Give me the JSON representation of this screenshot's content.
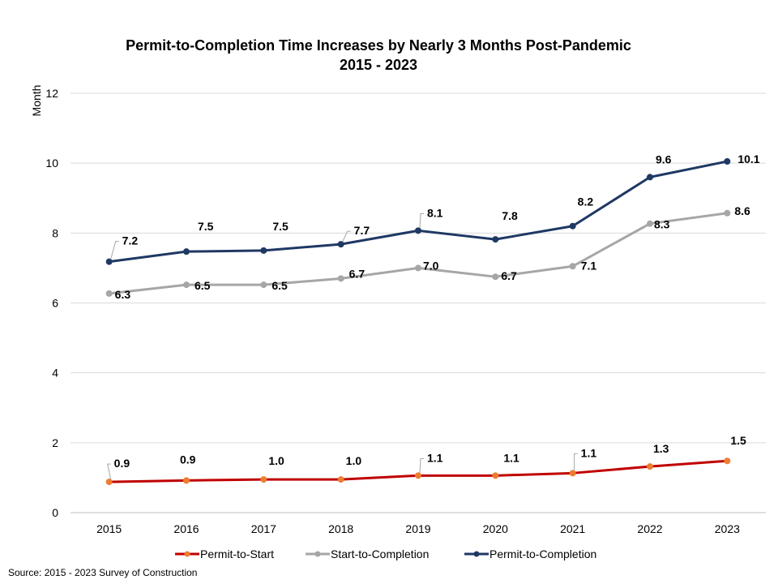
{
  "chart_data": {
    "type": "line",
    "title": "Permit-to-Completion  Time Increases by Nearly 3 Months Post-Pandemic",
    "subtitle": "2015 - 2023",
    "xlabel": "",
    "ylabel": "Month",
    "ylim": [
      0,
      12
    ],
    "yticks": [
      0,
      2,
      4,
      6,
      8,
      10,
      12
    ],
    "grid": true,
    "legend_position": "bottom",
    "categories": [
      "2015",
      "2016",
      "2017",
      "2018",
      "2019",
      "2020",
      "2021",
      "2022",
      "2023"
    ],
    "series": [
      {
        "name": "Permit-to-Start",
        "color": "#c00000",
        "marker_color": "#ed7d31",
        "values": [
          0.88,
          0.92,
          0.95,
          0.95,
          1.06,
          1.06,
          1.13,
          1.32,
          1.48
        ],
        "labels": [
          "0.9",
          "0.9",
          "1.0",
          "1.0",
          "1.1",
          "1.1",
          "1.1",
          "1.3",
          "1.5"
        ]
      },
      {
        "name": "Start-to-Completion",
        "color": "#a6a6a6",
        "marker_color": "#a6a6a6",
        "values": [
          6.27,
          6.52,
          6.52,
          6.7,
          7.0,
          6.75,
          7.05,
          8.27,
          8.57
        ],
        "labels": [
          "6.3",
          "6.5",
          "6.5",
          "6.7",
          "7.0",
          "6.7",
          "7.1",
          "8.3",
          "8.6"
        ]
      },
      {
        "name": "Permit-to-Completion",
        "color": "#1f3864",
        "marker_color": "#1f3864",
        "values": [
          7.18,
          7.47,
          7.5,
          7.68,
          8.07,
          7.82,
          8.2,
          9.6,
          10.05
        ],
        "labels": [
          "7.2",
          "7.5",
          "7.5",
          "7.7",
          "8.1",
          "7.8",
          "8.2",
          "9.6",
          "10.1"
        ]
      }
    ]
  },
  "source": "Source: 2015 - 2023 Survey of Construction"
}
